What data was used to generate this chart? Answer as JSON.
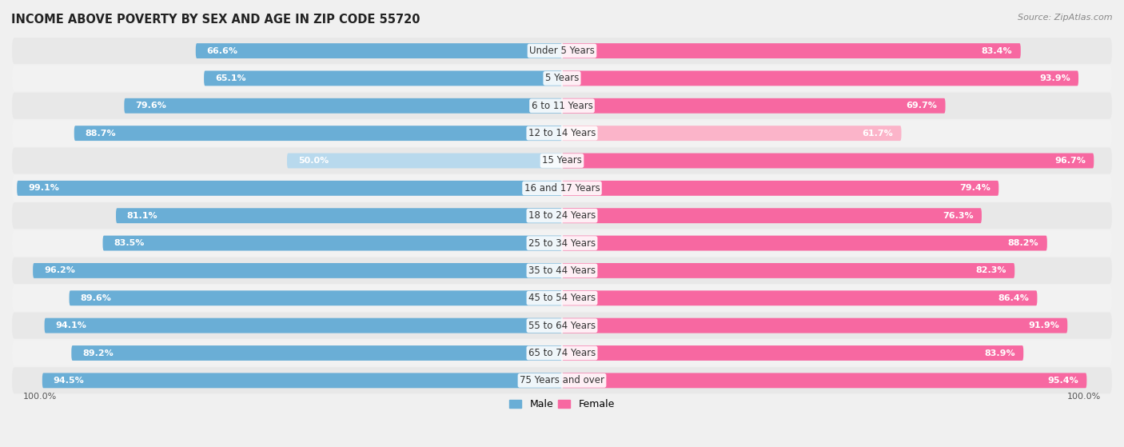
{
  "title": "INCOME ABOVE POVERTY BY SEX AND AGE IN ZIP CODE 55720",
  "source": "Source: ZipAtlas.com",
  "categories": [
    "Under 5 Years",
    "5 Years",
    "6 to 11 Years",
    "12 to 14 Years",
    "15 Years",
    "16 and 17 Years",
    "18 to 24 Years",
    "25 to 34 Years",
    "35 to 44 Years",
    "45 to 54 Years",
    "55 to 64 Years",
    "65 to 74 Years",
    "75 Years and over"
  ],
  "male_values": [
    66.6,
    65.1,
    79.6,
    88.7,
    50.0,
    99.1,
    81.1,
    83.5,
    96.2,
    89.6,
    94.1,
    89.2,
    94.5
  ],
  "female_values": [
    83.4,
    93.9,
    69.7,
    61.7,
    96.7,
    79.4,
    76.3,
    88.2,
    82.3,
    86.4,
    91.9,
    83.9,
    95.4
  ],
  "male_color_dark": "#6aaed6",
  "male_color_light": "#b8d9ed",
  "female_color_dark": "#f768a1",
  "female_color_light": "#fbb4c9",
  "male_label": "Male",
  "female_label": "Female",
  "bg_color": "#f0f0f0",
  "row_bg": "#e8e8e8",
  "max_val": 100.0,
  "xlabel": "100.0%"
}
